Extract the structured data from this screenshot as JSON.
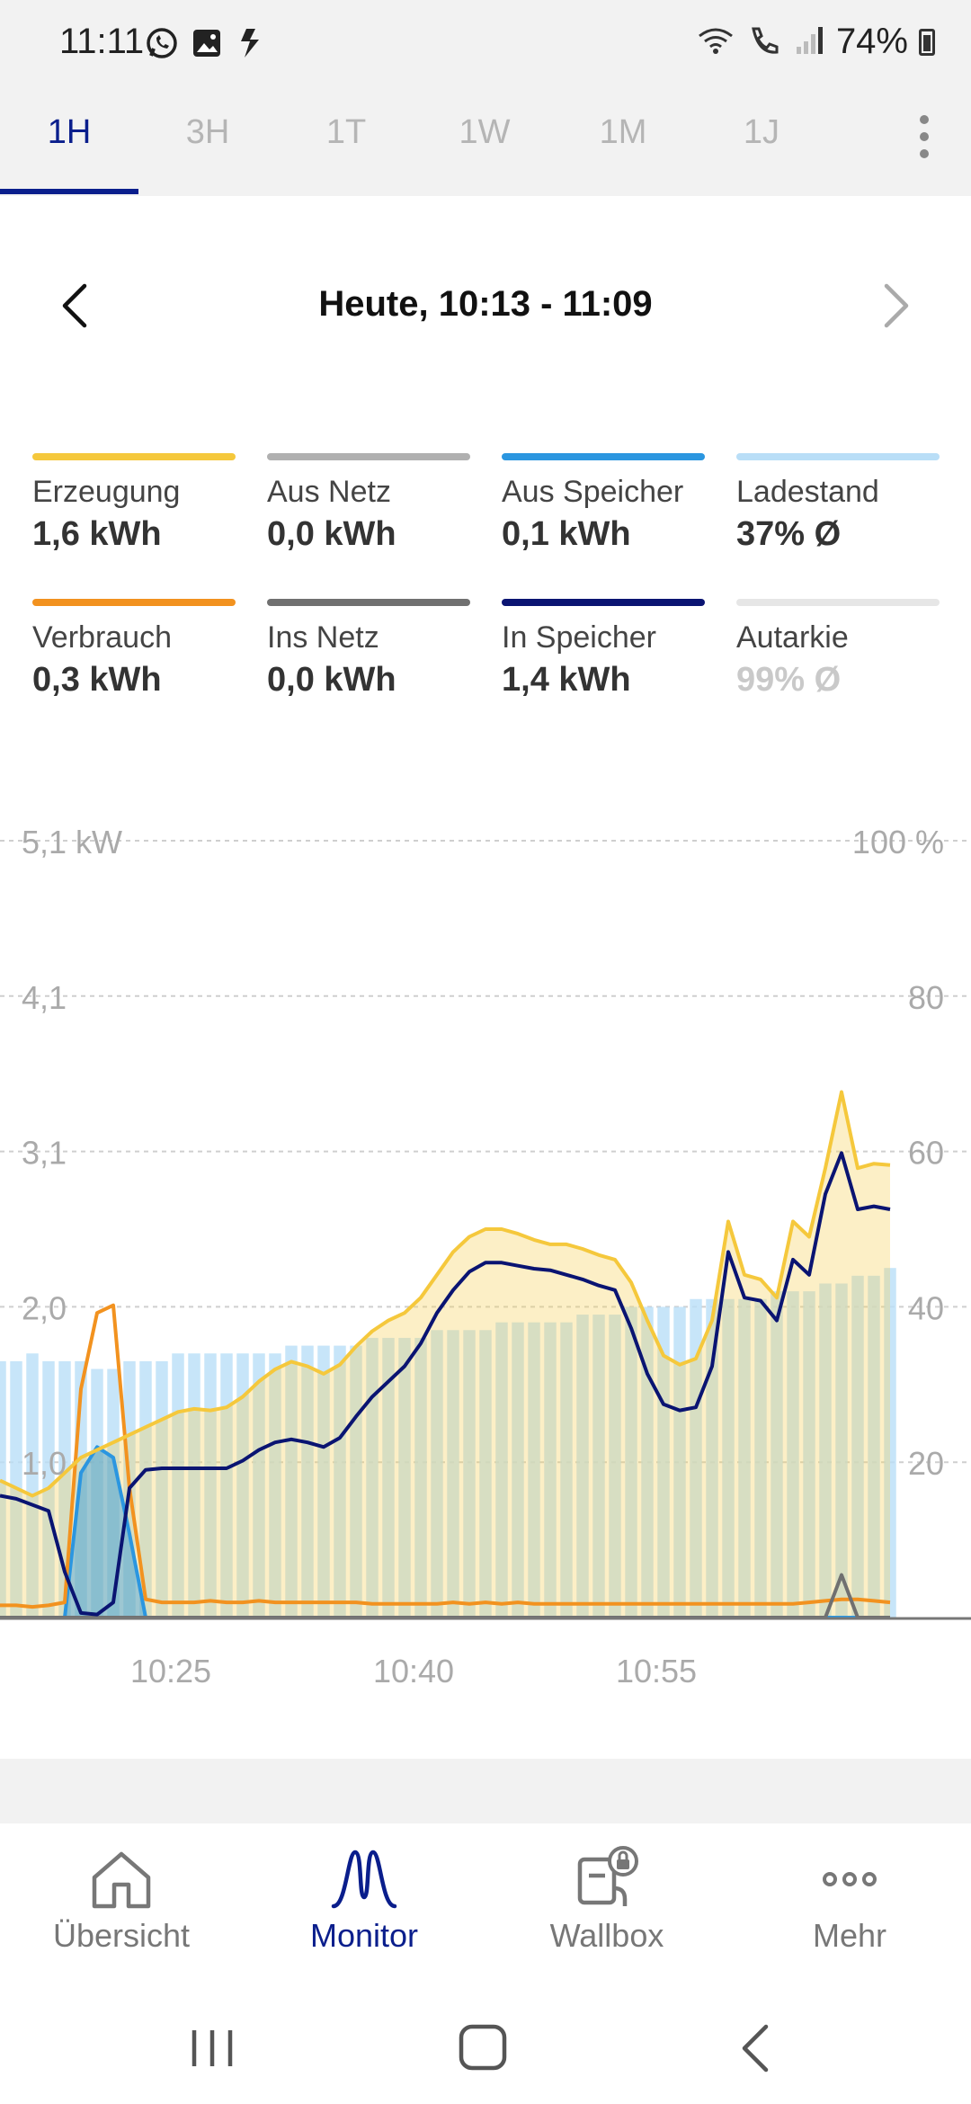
{
  "status_bar": {
    "time": "11:11",
    "battery": "74%",
    "icons": [
      "whatsapp-icon",
      "gallery-icon",
      "dollar-icon",
      "wifi-icon",
      "wifi-call-icon",
      "signal-icon",
      "battery-icon"
    ]
  },
  "tabs": [
    {
      "label": "1H",
      "active": true
    },
    {
      "label": "3H",
      "active": false
    },
    {
      "label": "1T",
      "active": false
    },
    {
      "label": "1W",
      "active": false
    },
    {
      "label": "1M",
      "active": false
    },
    {
      "label": "1J",
      "active": false
    }
  ],
  "date_range": "Heute, 10:13 - 11:09",
  "legend": [
    {
      "name": "Erzeugung",
      "value": "1,6 kWh",
      "color": "#f5c83c"
    },
    {
      "name": "Aus Netz",
      "value": "0,0 kWh",
      "color": "#b0b0b0"
    },
    {
      "name": "Aus Speicher",
      "value": "0,1 kWh",
      "color": "#2b96e0"
    },
    {
      "name": "Ladestand",
      "value": "37% Ø",
      "color": "#b9def7"
    },
    {
      "name": "Verbrauch",
      "value": "0,3 kWh",
      "color": "#f2921f"
    },
    {
      "name": "Ins Netz",
      "value": "0,0 kWh",
      "color": "#707070"
    },
    {
      "name": "In Speicher",
      "value": "1,4 kWh",
      "color": "#0a1472"
    },
    {
      "name": "Autarkie",
      "value": "99% Ø",
      "color": "#e6e6e6"
    }
  ],
  "chart_data": {
    "type": "line",
    "left_axis_ticks": [
      "5,1 kW",
      "4,1",
      "3,1",
      "2,0",
      "1,0"
    ],
    "right_axis_ticks": [
      "100 %",
      "80",
      "60",
      "40",
      "20"
    ],
    "left_ylim": [
      0,
      5.1
    ],
    "right_ylim": [
      0,
      100
    ],
    "x_tick_labels": [
      "10:25",
      "10:40",
      "10:55"
    ],
    "x_start_minute": 0,
    "x_ticks_minute": [
      10,
      25,
      40
    ],
    "x": [
      0,
      1,
      2,
      3,
      4,
      5,
      6,
      7,
      8,
      9,
      10,
      11,
      12,
      13,
      14,
      15,
      16,
      17,
      18,
      19,
      20,
      21,
      22,
      23,
      24,
      25,
      26,
      27,
      28,
      29,
      30,
      31,
      32,
      33,
      34,
      35,
      36,
      37,
      38,
      39,
      40,
      41,
      42,
      43,
      44,
      45,
      46,
      47,
      48,
      49,
      50,
      51,
      52,
      53,
      54,
      55
    ],
    "series": [
      {
        "name": "Erzeugung",
        "axis": "left",
        "color": "#f5c83c",
        "values": [
          0.9,
          0.85,
          0.8,
          0.85,
          0.95,
          1.05,
          1.1,
          1.15,
          1.2,
          1.25,
          1.3,
          1.35,
          1.37,
          1.36,
          1.38,
          1.45,
          1.55,
          1.63,
          1.68,
          1.65,
          1.6,
          1.66,
          1.78,
          1.88,
          1.95,
          2.0,
          2.1,
          2.25,
          2.4,
          2.5,
          2.55,
          2.55,
          2.52,
          2.48,
          2.45,
          2.45,
          2.42,
          2.38,
          2.35,
          2.2,
          1.95,
          1.72,
          1.66,
          1.7,
          1.95,
          2.6,
          2.25,
          2.22,
          2.1,
          2.6,
          2.5,
          2.95,
          3.45,
          2.95,
          2.98,
          2.97
        ]
      },
      {
        "name": "Verbrauch",
        "axis": "left",
        "color": "#f2921f",
        "values": [
          0.08,
          0.08,
          0.07,
          0.08,
          0.1,
          1.5,
          2.0,
          2.05,
          0.85,
          0.12,
          0.1,
          0.1,
          0.1,
          0.11,
          0.1,
          0.1,
          0.11,
          0.1,
          0.1,
          0.1,
          0.1,
          0.1,
          0.1,
          0.09,
          0.09,
          0.09,
          0.09,
          0.09,
          0.1,
          0.09,
          0.1,
          0.09,
          0.1,
          0.09,
          0.09,
          0.09,
          0.09,
          0.09,
          0.09,
          0.09,
          0.09,
          0.09,
          0.09,
          0.09,
          0.09,
          0.09,
          0.09,
          0.09,
          0.09,
          0.09,
          0.1,
          0.11,
          0.12,
          0.12,
          0.11,
          0.1
        ]
      },
      {
        "name": "Aus Speicher",
        "axis": "left",
        "color": "#2b96e0",
        "values": [
          0,
          0,
          0,
          0,
          0,
          0.95,
          1.12,
          1.05,
          0.55,
          0,
          0,
          0,
          0,
          0,
          0,
          0,
          0,
          0,
          0,
          0,
          0,
          0,
          0,
          0,
          0,
          0,
          0,
          0,
          0,
          0,
          0,
          0,
          0,
          0,
          0,
          0,
          0,
          0,
          0,
          0,
          0,
          0,
          0,
          0,
          0,
          0,
          0,
          0,
          0,
          0,
          0,
          0,
          0,
          0,
          0,
          0
        ]
      },
      {
        "name": "In Speicher",
        "axis": "left",
        "color": "#0a1472",
        "values": [
          0.8,
          0.78,
          0.74,
          0.7,
          0.3,
          0.03,
          0.02,
          0.1,
          0.85,
          0.97,
          0.98,
          0.98,
          0.98,
          0.98,
          0.98,
          1.03,
          1.1,
          1.15,
          1.17,
          1.15,
          1.12,
          1.18,
          1.32,
          1.45,
          1.55,
          1.65,
          1.8,
          2.0,
          2.15,
          2.27,
          2.33,
          2.33,
          2.31,
          2.29,
          2.28,
          2.25,
          2.22,
          2.18,
          2.15,
          1.9,
          1.6,
          1.4,
          1.36,
          1.38,
          1.65,
          2.4,
          2.1,
          2.08,
          1.95,
          2.35,
          2.25,
          2.78,
          3.05,
          2.68,
          2.7,
          2.68
        ]
      },
      {
        "name": "Ins Netz",
        "axis": "left",
        "color": "#707070",
        "values": [
          0,
          0,
          0,
          0,
          0,
          0,
          0,
          0,
          0,
          0,
          0,
          0,
          0,
          0,
          0,
          0,
          0,
          0,
          0,
          0,
          0,
          0,
          0,
          0,
          0,
          0,
          0,
          0,
          0,
          0,
          0,
          0,
          0,
          0,
          0,
          0,
          0,
          0,
          0,
          0,
          0,
          0,
          0,
          0,
          0,
          0,
          0,
          0,
          0,
          0,
          0,
          0,
          0.28,
          0,
          0,
          0
        ]
      },
      {
        "name": "Ladestand",
        "axis": "right",
        "type": "bar",
        "color": "#b9def7",
        "values": [
          33,
          33,
          34,
          33,
          33,
          33,
          32,
          32,
          33,
          33,
          33,
          34,
          34,
          34,
          34,
          34,
          34,
          34,
          35,
          35,
          35,
          35,
          35,
          36,
          36,
          36,
          36,
          37,
          37,
          37,
          37,
          38,
          38,
          38,
          38,
          38,
          39,
          39,
          39,
          40,
          40,
          40,
          40,
          41,
          41,
          41,
          41,
          41,
          42,
          42,
          42,
          43,
          43,
          44,
          44,
          45
        ]
      }
    ]
  },
  "bottom_nav": [
    {
      "label": "Übersicht",
      "icon": "home-icon",
      "active": false
    },
    {
      "label": "Monitor",
      "icon": "monitor-icon",
      "active": true
    },
    {
      "label": "Wallbox",
      "icon": "wallbox-icon",
      "active": false
    },
    {
      "label": "Mehr",
      "icon": "more-icon",
      "active": false
    }
  ],
  "system_nav": [
    "recents-button",
    "home-button",
    "back-button"
  ]
}
